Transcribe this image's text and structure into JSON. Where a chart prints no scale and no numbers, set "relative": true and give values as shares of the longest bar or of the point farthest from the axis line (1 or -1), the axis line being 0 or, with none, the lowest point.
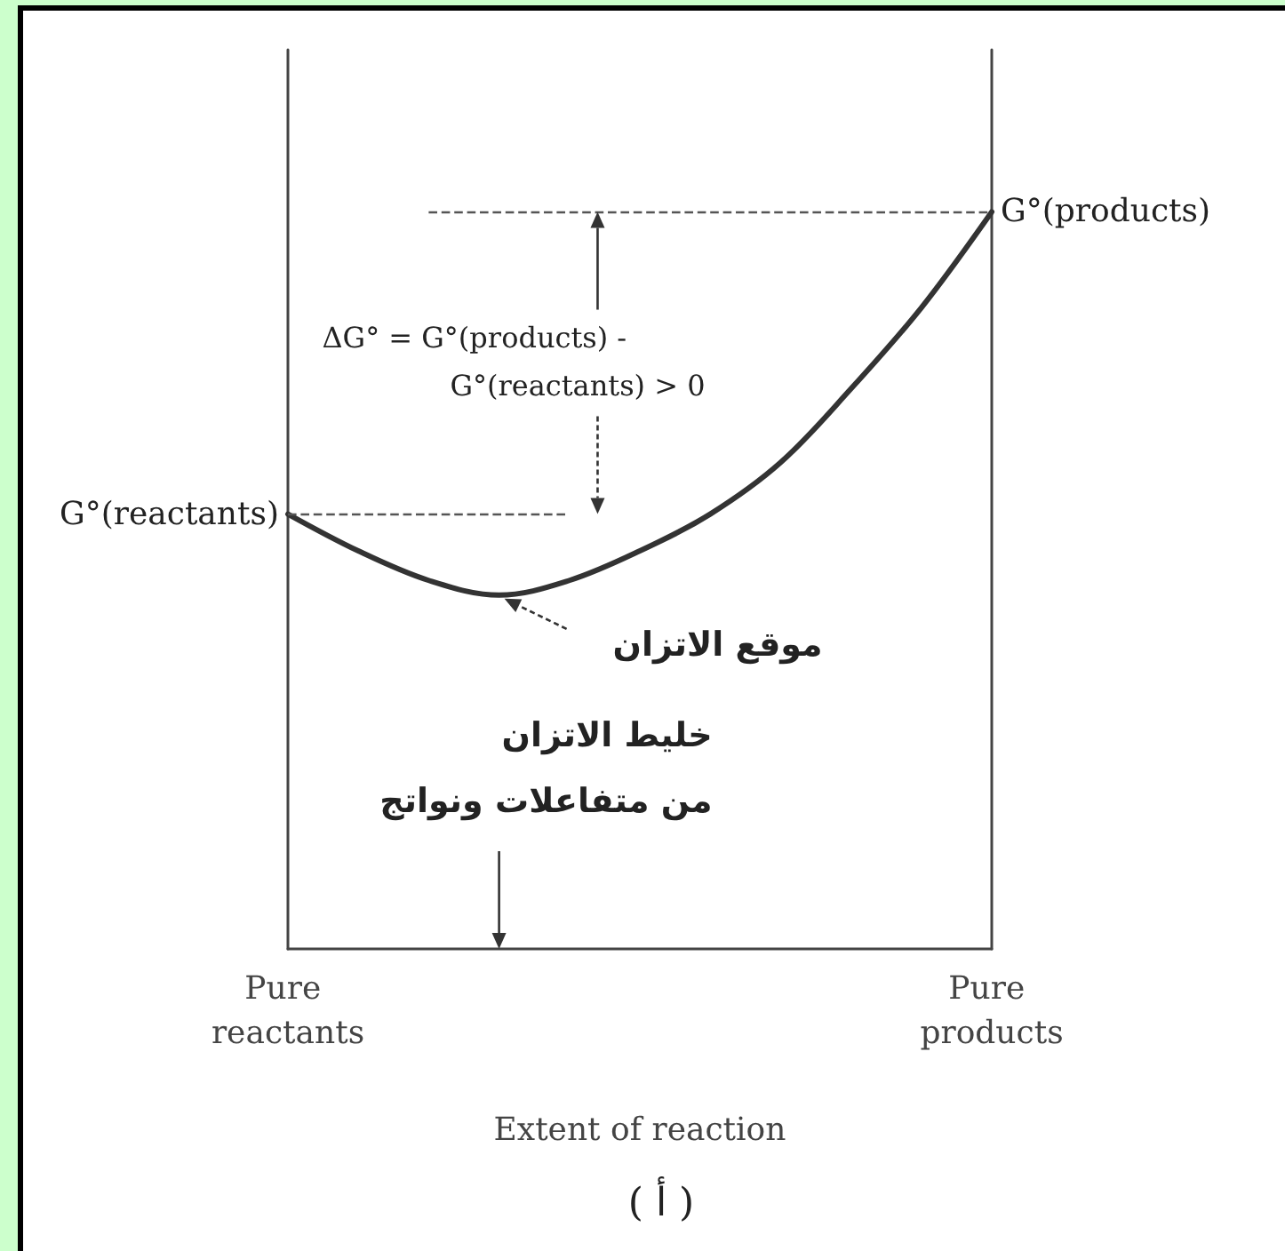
{
  "chart_data": {
    "type": "line",
    "relative": true,
    "xlabel": "Extent of reaction",
    "categories": [
      "Pure reactants",
      null,
      null,
      null,
      null,
      null,
      null,
      null,
      null,
      null,
      "Pure products"
    ],
    "values": [
      0.59,
      0.54,
      0.5,
      0.48,
      0.5,
      0.54,
      0.59,
      0.66,
      0.76,
      0.87,
      1
    ],
    "color": "#333333",
    "line_style": "solid",
    "ref_lines": [
      {
        "axis": "y",
        "value": 0.59,
        "label": "G°(reactants)",
        "line_style": "dashed"
      },
      {
        "axis": "y",
        "value": 1,
        "label": "G°(products)",
        "line_style": "dashed"
      }
    ],
    "annotations": [
      "ΔG° = G°(products) -\nG°(reactants) > 0",
      "موقع الاتزان",
      "خليط الاتزان\nمن متفاعلات ونواتج",
      "( أ )"
    ]
  }
}
